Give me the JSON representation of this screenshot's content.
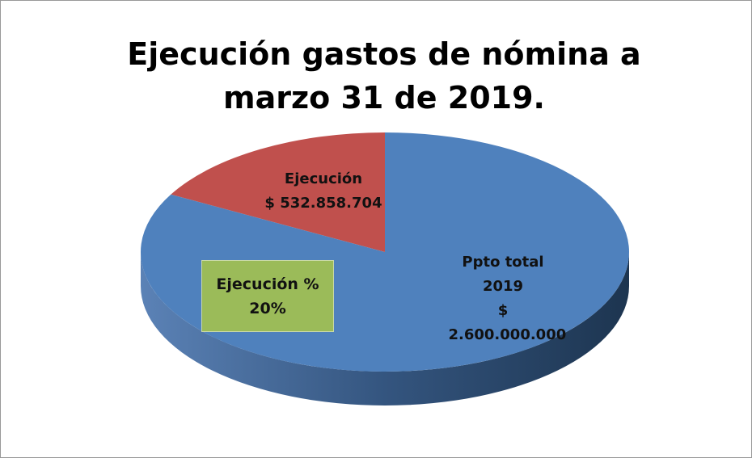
{
  "chart_data": {
    "type": "pie3d",
    "title": "Ejecución gastos de nómina a marzo 31 de 2019.",
    "categories": [
      "Ejecución",
      "Ppto total 2019"
    ],
    "values": [
      532858704,
      2600000000
    ],
    "value_labels": [
      "$ 532.858.704",
      "$ 2.600.000.000"
    ],
    "colors": [
      "#c0504d",
      "#4f81bd"
    ],
    "annotation": {
      "title": "Ejecución %",
      "value": "20%"
    }
  }
}
